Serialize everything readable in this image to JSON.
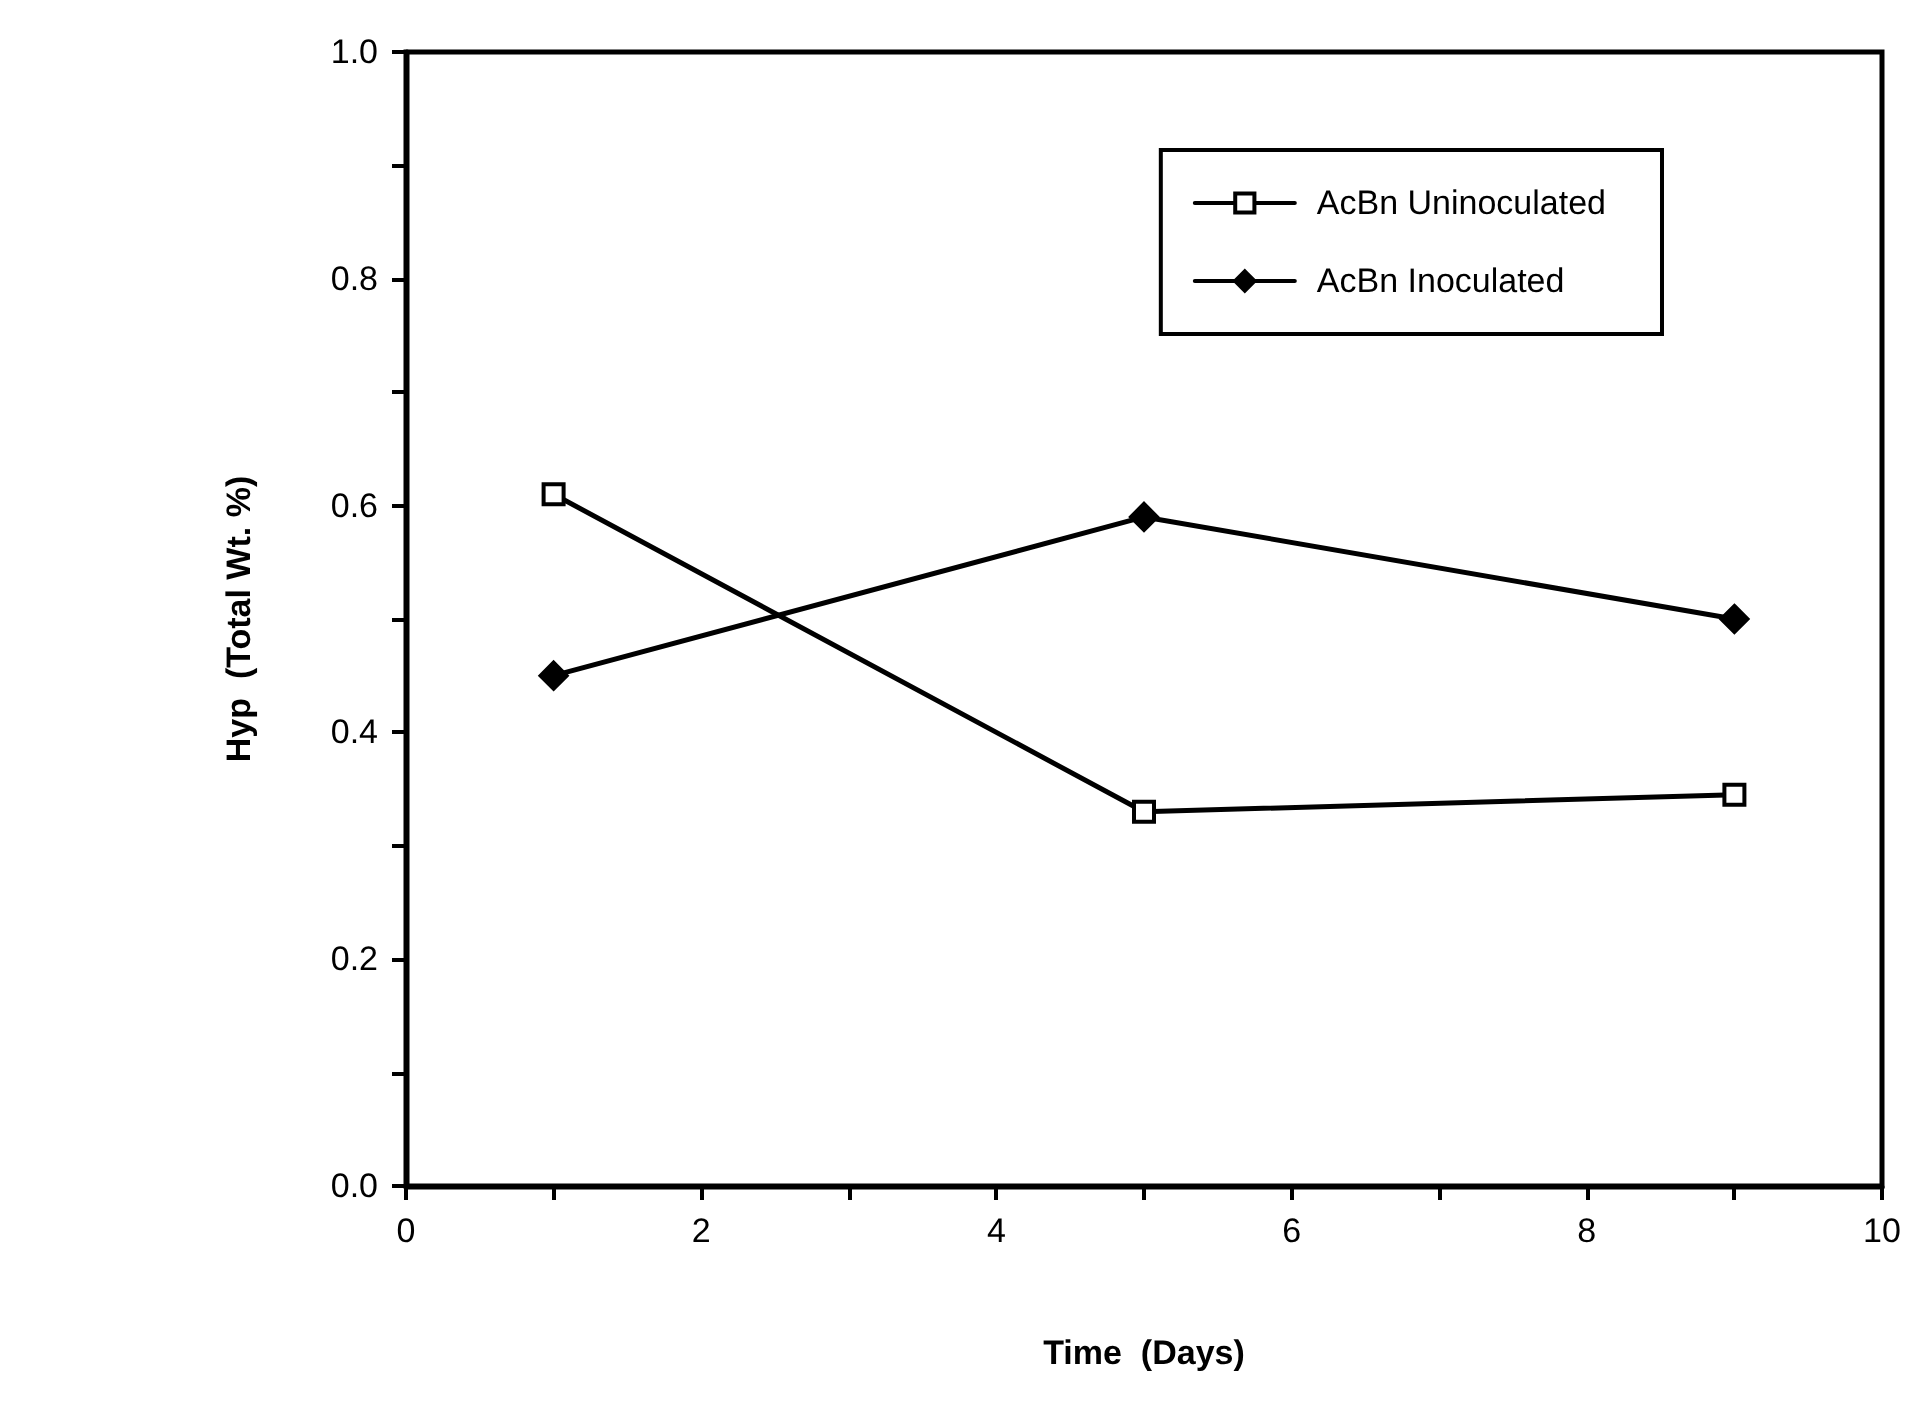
{
  "chart_data": {
    "type": "line",
    "xlabel": "Time  (Days)",
    "ylabel": "Hyp  (Total Wt. %)",
    "x": [
      1,
      5,
      9
    ],
    "series": [
      {
        "name": "AcBn Uninoculated",
        "color": "#000000",
        "marker": "square",
        "values": [
          0.61,
          0.33,
          0.345
        ]
      },
      {
        "name": "AcBn Inoculated",
        "color": "#000000",
        "marker": "diamond",
        "values": [
          0.45,
          0.59,
          0.5
        ]
      }
    ],
    "xlim": [
      0,
      10
    ],
    "xticks": [
      0,
      {
        "value": 1,
        "label": null
      },
      2,
      {
        "value": 3,
        "label": null
      },
      4,
      {
        "value": 5,
        "label": null
      },
      6,
      {
        "value": 7,
        "label": null
      },
      8,
      {
        "value": 9,
        "label": null
      },
      10
    ],
    "ylim": [
      0,
      1
    ],
    "yticks": [
      "0.0",
      {
        "value": 0.1,
        "label": null
      },
      {
        "value": 0.2,
        "label": "0.2"
      },
      {
        "value": 0.3,
        "label": null
      },
      {
        "value": 0.4,
        "label": "0.4"
      },
      {
        "value": 0.5,
        "label": null
      },
      {
        "value": 0.6,
        "label": "0.6"
      },
      {
        "value": 0.7,
        "label": null
      },
      {
        "value": 0.8,
        "label": "0.8"
      },
      {
        "value": 0.9,
        "label": null
      },
      {
        "value": 1,
        "label": "1.0"
      }
    ],
    "grid": false,
    "legend": "top right",
    "line_style": "solid"
  }
}
